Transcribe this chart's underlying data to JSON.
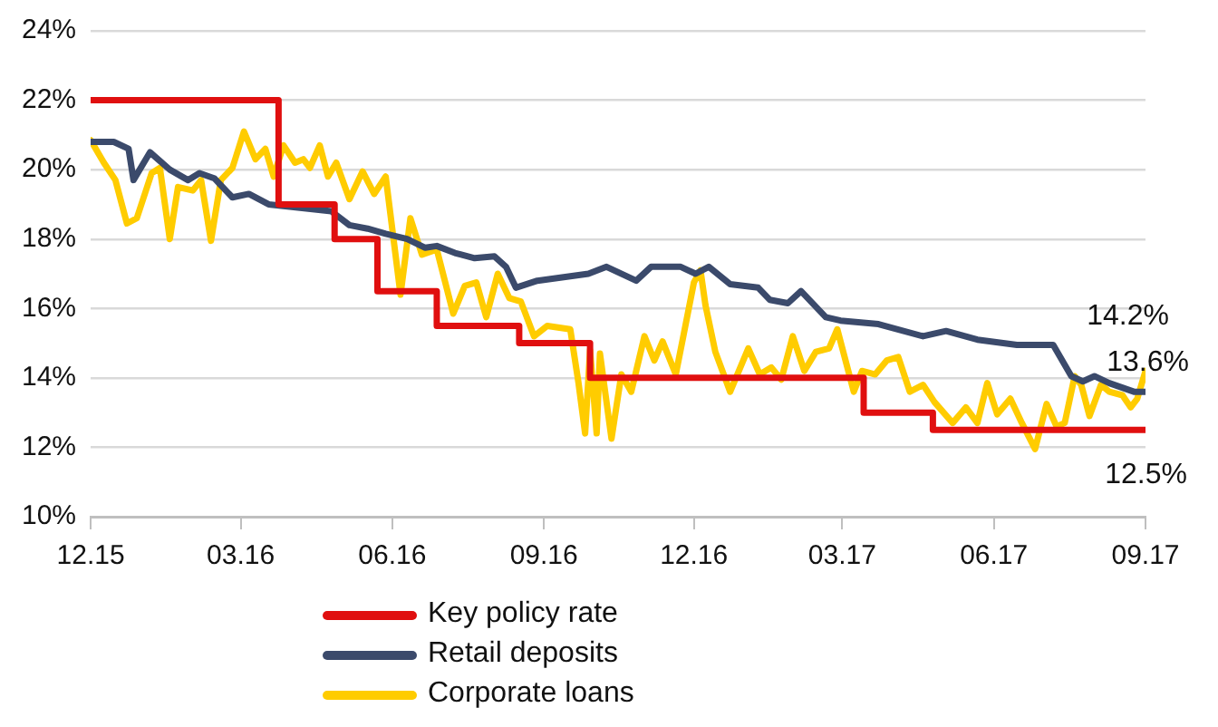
{
  "chart_data": {
    "type": "line",
    "xlim": [
      "2015-12-01",
      "2017-09-01"
    ],
    "xticks": [
      {
        "value": "2015-12-01",
        "label": "12.15"
      },
      {
        "value": "2016-03-01",
        "label": "03.16"
      },
      {
        "value": "2016-06-01",
        "label": "06.16"
      },
      {
        "value": "2016-09-01",
        "label": "09.16"
      },
      {
        "value": "2016-12-01",
        "label": "12.16"
      },
      {
        "value": "2017-03-01",
        "label": "03.17"
      },
      {
        "value": "2017-06-01",
        "label": "06.17"
      },
      {
        "value": "2017-09-01",
        "label": "09.17"
      }
    ],
    "ylim": [
      10,
      24
    ],
    "yticks": [
      {
        "value": 10,
        "label": "10%"
      },
      {
        "value": 12,
        "label": "12%"
      },
      {
        "value": 14,
        "label": "14%"
      },
      {
        "value": 16,
        "label": "16%"
      },
      {
        "value": 18,
        "label": "18%"
      },
      {
        "value": 20,
        "label": "20%"
      },
      {
        "value": 22,
        "label": "22%"
      },
      {
        "value": 24,
        "label": "24%"
      }
    ],
    "grid": "y",
    "legend": "bottom",
    "marker": "none",
    "series": [
      {
        "name": "Key policy rate",
        "type": "step",
        "color": "#e00f0f",
        "x": [
          "2015-12-01",
          "2016-03-24",
          "2016-04-27",
          "2016-05-23",
          "2016-06-28",
          "2016-08-17",
          "2016-09-29",
          "2017-03-14",
          "2017-04-25",
          "2017-09-01"
        ],
        "values": [
          22,
          19,
          18,
          16.5,
          15.5,
          15,
          14,
          13,
          12.5,
          12.5
        ]
      },
      {
        "name": "Retail deposits",
        "type": "line",
        "color": "#3b4a6b",
        "x": [
          "2015-12-01",
          "2015-12-15",
          "2015-12-24",
          "2015-12-27",
          "2016-01-06",
          "2016-01-18",
          "2016-01-29",
          "2016-02-05",
          "2016-02-14",
          "2016-02-25",
          "2016-03-06",
          "2016-03-18",
          "2016-04-06",
          "2016-04-25",
          "2016-05-06",
          "2016-05-17",
          "2016-05-28",
          "2016-06-10",
          "2016-06-21",
          "2016-06-28",
          "2016-07-09",
          "2016-07-21",
          "2016-08-02",
          "2016-08-09",
          "2016-08-15",
          "2016-08-28",
          "2016-09-13",
          "2016-09-28",
          "2016-10-09",
          "2016-10-27",
          "2016-11-05",
          "2016-11-23",
          "2016-12-02",
          "2016-12-10",
          "2016-12-23",
          "2017-01-09",
          "2017-01-16",
          "2017-01-27",
          "2017-02-04",
          "2017-02-19",
          "2017-02-28",
          "2017-03-23",
          "2017-04-19",
          "2017-05-03",
          "2017-05-22",
          "2017-06-15",
          "2017-07-07",
          "2017-07-18",
          "2017-07-25",
          "2017-08-01",
          "2017-08-10",
          "2017-08-25",
          "2017-09-01"
        ],
        "values": [
          20.8,
          20.8,
          20.6,
          19.7,
          20.5,
          20.0,
          19.7,
          19.9,
          19.75,
          19.2,
          19.3,
          19.0,
          18.9,
          18.8,
          18.4,
          18.3,
          18.15,
          18.0,
          17.75,
          17.8,
          17.6,
          17.45,
          17.5,
          17.2,
          16.6,
          16.8,
          16.9,
          17.0,
          17.2,
          16.8,
          17.2,
          17.2,
          17.0,
          17.2,
          16.7,
          16.6,
          16.25,
          16.15,
          16.5,
          15.75,
          15.65,
          15.55,
          15.2,
          15.35,
          15.1,
          14.95,
          14.95,
          14.05,
          13.9,
          14.05,
          13.85,
          13.6,
          13.6
        ]
      },
      {
        "name": "Corporate loans",
        "type": "line",
        "color": "#ffcc00",
        "x": [
          "2015-12-01",
          "2015-12-09",
          "2015-12-16",
          "2015-12-23",
          "2015-12-29",
          "2016-01-07",
          "2016-01-12",
          "2016-01-18",
          "2016-01-23",
          "2016-02-01",
          "2016-02-06",
          "2016-02-12",
          "2016-02-18",
          "2016-02-25",
          "2016-03-03",
          "2016-03-10",
          "2016-03-16",
          "2016-03-21",
          "2016-03-27",
          "2016-04-03",
          "2016-04-08",
          "2016-04-12",
          "2016-04-18",
          "2016-04-23",
          "2016-04-28",
          "2016-05-06",
          "2016-05-14",
          "2016-05-21",
          "2016-05-28",
          "2016-06-06",
          "2016-06-12",
          "2016-06-19",
          "2016-06-28",
          "2016-07-08",
          "2016-07-15",
          "2016-07-22",
          "2016-07-28",
          "2016-08-04",
          "2016-08-11",
          "2016-08-18",
          "2016-08-26",
          "2016-09-03",
          "2016-09-17",
          "2016-09-22",
          "2016-09-26",
          "2016-09-29",
          "2016-10-03",
          "2016-10-05",
          "2016-10-12",
          "2016-10-18",
          "2016-10-24",
          "2016-11-01",
          "2016-11-07",
          "2016-11-12",
          "2016-11-20",
          "2016-11-25",
          "2016-12-01",
          "2016-12-05",
          "2016-12-08",
          "2016-12-14",
          "2016-12-23",
          "2017-01-03",
          "2017-01-10",
          "2017-01-17",
          "2017-01-23",
          "2017-01-30",
          "2017-02-06",
          "2017-02-13",
          "2017-02-21",
          "2017-02-26",
          "2017-03-08",
          "2017-03-13",
          "2017-03-21",
          "2017-03-28",
          "2017-04-04",
          "2017-04-11",
          "2017-04-19",
          "2017-04-26",
          "2017-05-07",
          "2017-05-15",
          "2017-05-22",
          "2017-05-28",
          "2017-06-03",
          "2017-06-11",
          "2017-06-18",
          "2017-06-26",
          "2017-07-03",
          "2017-07-09",
          "2017-07-14",
          "2017-07-20",
          "2017-07-24",
          "2017-07-29",
          "2017-08-05",
          "2017-08-10",
          "2017-08-18",
          "2017-08-23",
          "2017-08-27",
          "2017-09-01"
        ],
        "values": [
          20.85,
          20.2,
          19.7,
          18.45,
          18.6,
          19.9,
          20.05,
          18.0,
          19.5,
          19.4,
          19.7,
          17.95,
          19.7,
          20.05,
          21.1,
          20.3,
          20.6,
          19.8,
          20.7,
          20.2,
          20.3,
          20.05,
          20.7,
          19.8,
          20.2,
          19.15,
          19.95,
          19.3,
          19.8,
          16.4,
          18.6,
          17.55,
          17.7,
          15.85,
          16.65,
          16.75,
          15.75,
          17.0,
          16.3,
          16.2,
          15.2,
          15.5,
          15.4,
          13.85,
          12.4,
          14.8,
          12.4,
          14.7,
          12.25,
          14.1,
          13.6,
          15.2,
          14.5,
          15.05,
          14.1,
          15.3,
          16.75,
          17.1,
          16.1,
          14.75,
          13.6,
          14.85,
          14.1,
          14.3,
          13.95,
          15.2,
          14.2,
          14.75,
          14.85,
          15.4,
          13.6,
          14.2,
          14.1,
          14.5,
          14.6,
          13.6,
          13.8,
          13.3,
          12.7,
          13.15,
          12.7,
          13.85,
          12.95,
          13.4,
          12.7,
          11.95,
          13.25,
          12.6,
          12.7,
          14.05,
          13.8,
          12.9,
          13.8,
          13.6,
          13.5,
          13.15,
          13.4,
          14.2
        ]
      }
    ],
    "annotations": [
      {
        "text": "14.2%",
        "x": "2017-09-01",
        "y": 14.2
      },
      {
        "text": "13.6%",
        "x": "2017-09-01",
        "y": 13.6
      },
      {
        "text": "12.5%",
        "x": "2017-09-01",
        "y": 12.5
      }
    ]
  }
}
